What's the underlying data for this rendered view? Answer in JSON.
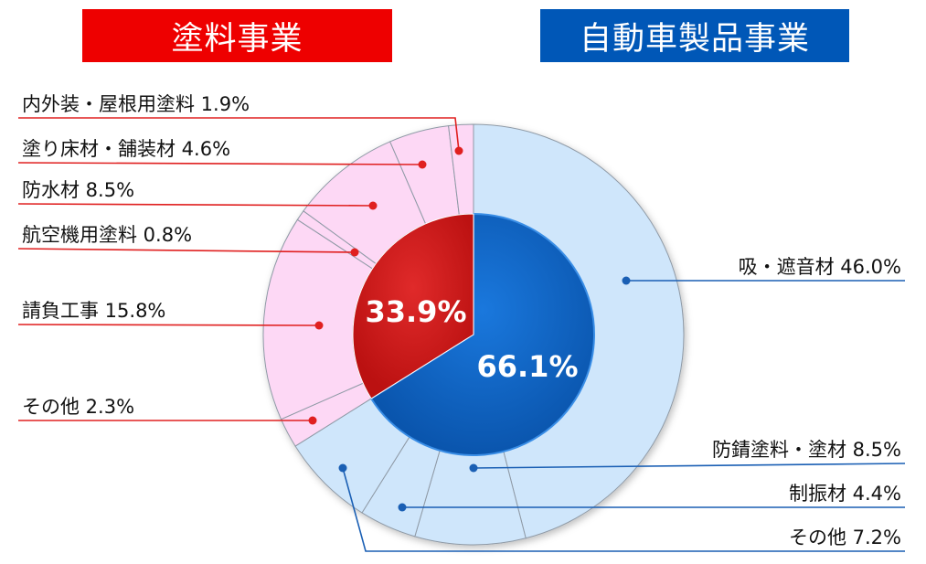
{
  "chart_data": {
    "type": "pie",
    "inner": {
      "series": [
        {
          "name": "塗料事業",
          "value": 33.9,
          "label": "33.9%",
          "color": "#d42020"
        },
        {
          "name": "自動車製品事業",
          "value": 66.1,
          "label": "66.1%",
          "color": "#0a62c4"
        }
      ]
    },
    "outer": {
      "segments": [
        {
          "name": "吸・遮音材",
          "value": 46.0,
          "label": "吸・遮音材 46.0%",
          "group": "auto",
          "color": "#cfe6fb"
        },
        {
          "name": "防錆塗料・塗材",
          "value": 8.5,
          "label": "防錆塗料・塗材 8.5%",
          "group": "auto",
          "color": "#cfe6fb"
        },
        {
          "name": "制振材",
          "value": 4.4,
          "label": "制振材 4.4%",
          "group": "auto",
          "color": "#cfe6fb"
        },
        {
          "name": "その他",
          "value": 7.2,
          "label": "その他 7.2%",
          "group": "auto",
          "color": "#cfe6fb"
        },
        {
          "name": "その他",
          "value": 2.3,
          "label": "その他 2.3%",
          "group": "paint",
          "color": "#fdd8f5"
        },
        {
          "name": "請負工事",
          "value": 15.8,
          "label": "請負工事 15.8%",
          "group": "paint",
          "color": "#fdd8f5"
        },
        {
          "name": "航空機用塗料",
          "value": 0.8,
          "label": "航空機用塗料 0.8%",
          "group": "paint",
          "color": "#fdd8f5"
        },
        {
          "name": "防水材",
          "value": 8.5,
          "label": "防水材 8.5%",
          "group": "paint",
          "color": "#fdd8f5"
        },
        {
          "name": "塗り床材・舗装材",
          "value": 4.6,
          "label": "塗り床材・舗装材 4.6%",
          "group": "paint",
          "color": "#fdd8f5"
        },
        {
          "name": "内外装・屋根用塗料",
          "value": 1.9,
          "label": "内外装・屋根用塗料 1.9%",
          "group": "paint",
          "color": "#fdd8f5"
        }
      ]
    },
    "legend_colors": {
      "paint": "#e02020",
      "auto": "#1a5fb4"
    }
  },
  "headers": {
    "paint": "塗料事業",
    "auto": "自動車製品事業"
  }
}
